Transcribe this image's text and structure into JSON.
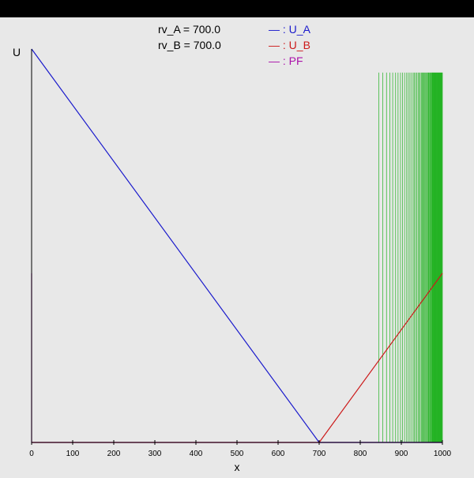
{
  "annotations": [
    {
      "label": "rv_A = 700.0"
    },
    {
      "label": "rv_B = 700.0"
    }
  ],
  "legend": [
    {
      "text": "— : U_A",
      "color": "#1a1acc"
    },
    {
      "text": "— : U_B",
      "color": "#cc1a1a"
    },
    {
      "text": "— : PF",
      "color": "#aa11aa"
    }
  ],
  "chart_data": {
    "type": "line",
    "xlabel": "x",
    "ylabel": "U",
    "xlim": [
      0,
      1000
    ],
    "ylim": [
      0,
      1
    ],
    "x_ticks": [
      0,
      100,
      200,
      300,
      400,
      500,
      600,
      700,
      800,
      900,
      1000
    ],
    "grid": false,
    "series": [
      {
        "name": "U_A",
        "color": "#1a1acc",
        "x": [
          0,
          700,
          1000
        ],
        "y": [
          1.0,
          0.0,
          0.0
        ]
      },
      {
        "name": "U_B",
        "color": "#cc1a1a",
        "x": [
          0,
          700,
          1000
        ],
        "y": [
          0.0,
          0.0,
          0.43
        ]
      },
      {
        "name": "PF",
        "color": "#aa11aa",
        "x": [
          0,
          0,
          1000
        ],
        "y": [
          0.43,
          0.0,
          0.0
        ]
      }
    ],
    "vertical_lines": {
      "color": "#00aa00",
      "y_top": 0.94,
      "x": [
        845,
        855,
        864,
        872,
        879,
        886,
        892,
        898,
        903,
        908,
        913,
        917,
        921,
        925,
        929,
        932,
        935,
        938,
        941,
        944,
        946,
        949,
        951,
        953,
        955,
        957,
        959,
        961,
        963,
        964,
        966,
        967,
        969,
        970,
        971,
        973,
        974,
        975,
        976,
        977,
        978,
        979,
        980,
        981,
        982,
        983,
        984,
        985,
        986,
        987,
        988,
        989,
        990,
        991,
        992,
        993,
        994,
        995,
        996,
        997,
        998,
        999,
        1000
      ]
    }
  }
}
